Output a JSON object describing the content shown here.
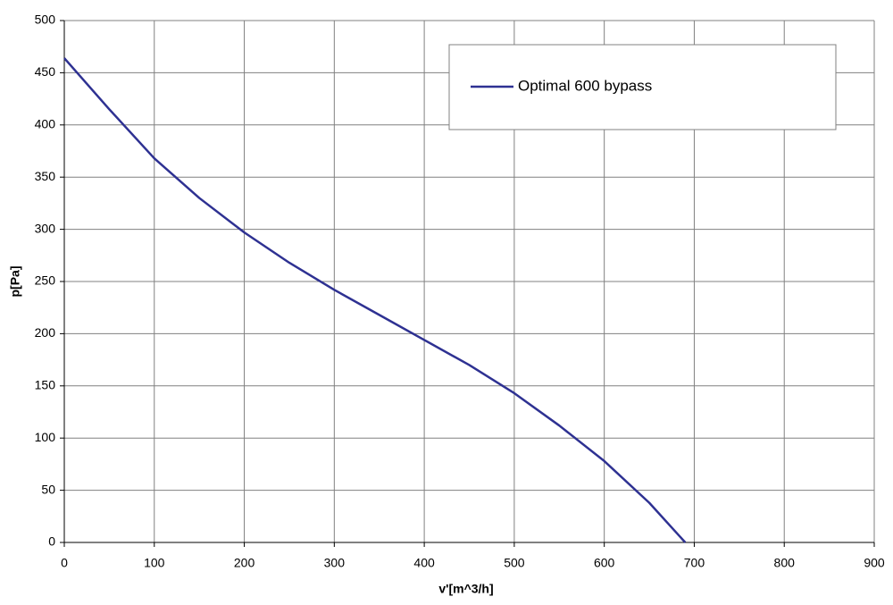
{
  "chart_data": {
    "type": "line",
    "x_label": "v'[m^3/h]",
    "y_label": "p[Pa]",
    "x": [
      0,
      50,
      100,
      150,
      200,
      250,
      300,
      350,
      400,
      450,
      500,
      550,
      600,
      650,
      690
    ],
    "series": [
      {
        "name": "Optimal 600 bypass",
        "color": "#2e3192",
        "values": [
          464,
          415,
          368,
          330,
          297,
          268,
          242,
          218,
          194,
          170,
          143,
          112,
          78,
          38,
          0
        ]
      }
    ],
    "xlim": [
      0,
      900
    ],
    "xticks": [
      0,
      100,
      200,
      300,
      400,
      500,
      600,
      700,
      800,
      900
    ],
    "ylim": [
      0,
      500
    ],
    "yticks": [
      0,
      50,
      100,
      150,
      200,
      250,
      300,
      350,
      400,
      450,
      500
    ],
    "grid": true,
    "legend": "top-right"
  }
}
